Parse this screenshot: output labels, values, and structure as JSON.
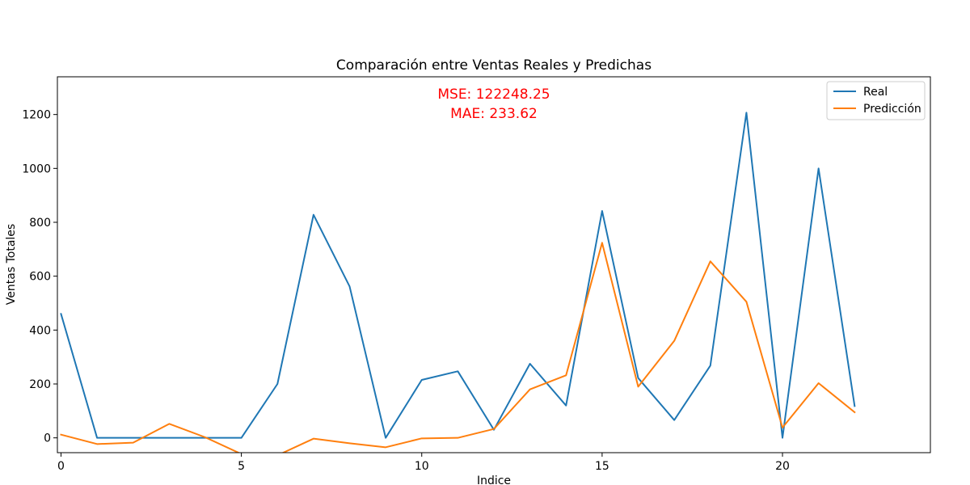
{
  "chart_data": {
    "type": "line",
    "title": "Comparación entre Ventas Reales y Predichas",
    "xlabel": "Indice",
    "ylabel": "Ventas Totales",
    "xlim": [
      -0.1,
      24.1
    ],
    "ylim": [
      -55,
      1340
    ],
    "xticks": [
      0,
      5,
      10,
      15,
      20
    ],
    "yticks": [
      0,
      200,
      400,
      600,
      800,
      1000,
      1200
    ],
    "grid": false,
    "legend_position": "top-right",
    "x": [
      0,
      1,
      2,
      3,
      4,
      5,
      6,
      7,
      8,
      9,
      10,
      11,
      12,
      13,
      14,
      15,
      16,
      17,
      18,
      19,
      20,
      21,
      22
    ],
    "series": [
      {
        "name": "Real",
        "color": "#1f77b4",
        "values": [
          460,
          0,
          0,
          0,
          0,
          0,
          200,
          828,
          562,
          0,
          215,
          247,
          30,
          275,
          120,
          842,
          222,
          66,
          268,
          1207,
          0,
          1000,
          118
        ]
      },
      {
        "name": "Predicción",
        "color": "#ff7f0e",
        "values": [
          12,
          -23,
          -18,
          52,
          2,
          -60,
          -65,
          -3,
          -20,
          -35,
          -2,
          0,
          33,
          180,
          232,
          724,
          190,
          360,
          655,
          505,
          38,
          203,
          95
        ]
      }
    ],
    "annotations": [
      {
        "text": "MSE: 122248.25",
        "color": "#ff0000"
      },
      {
        "text": "MAE: 233.62",
        "color": "#ff0000"
      }
    ]
  }
}
